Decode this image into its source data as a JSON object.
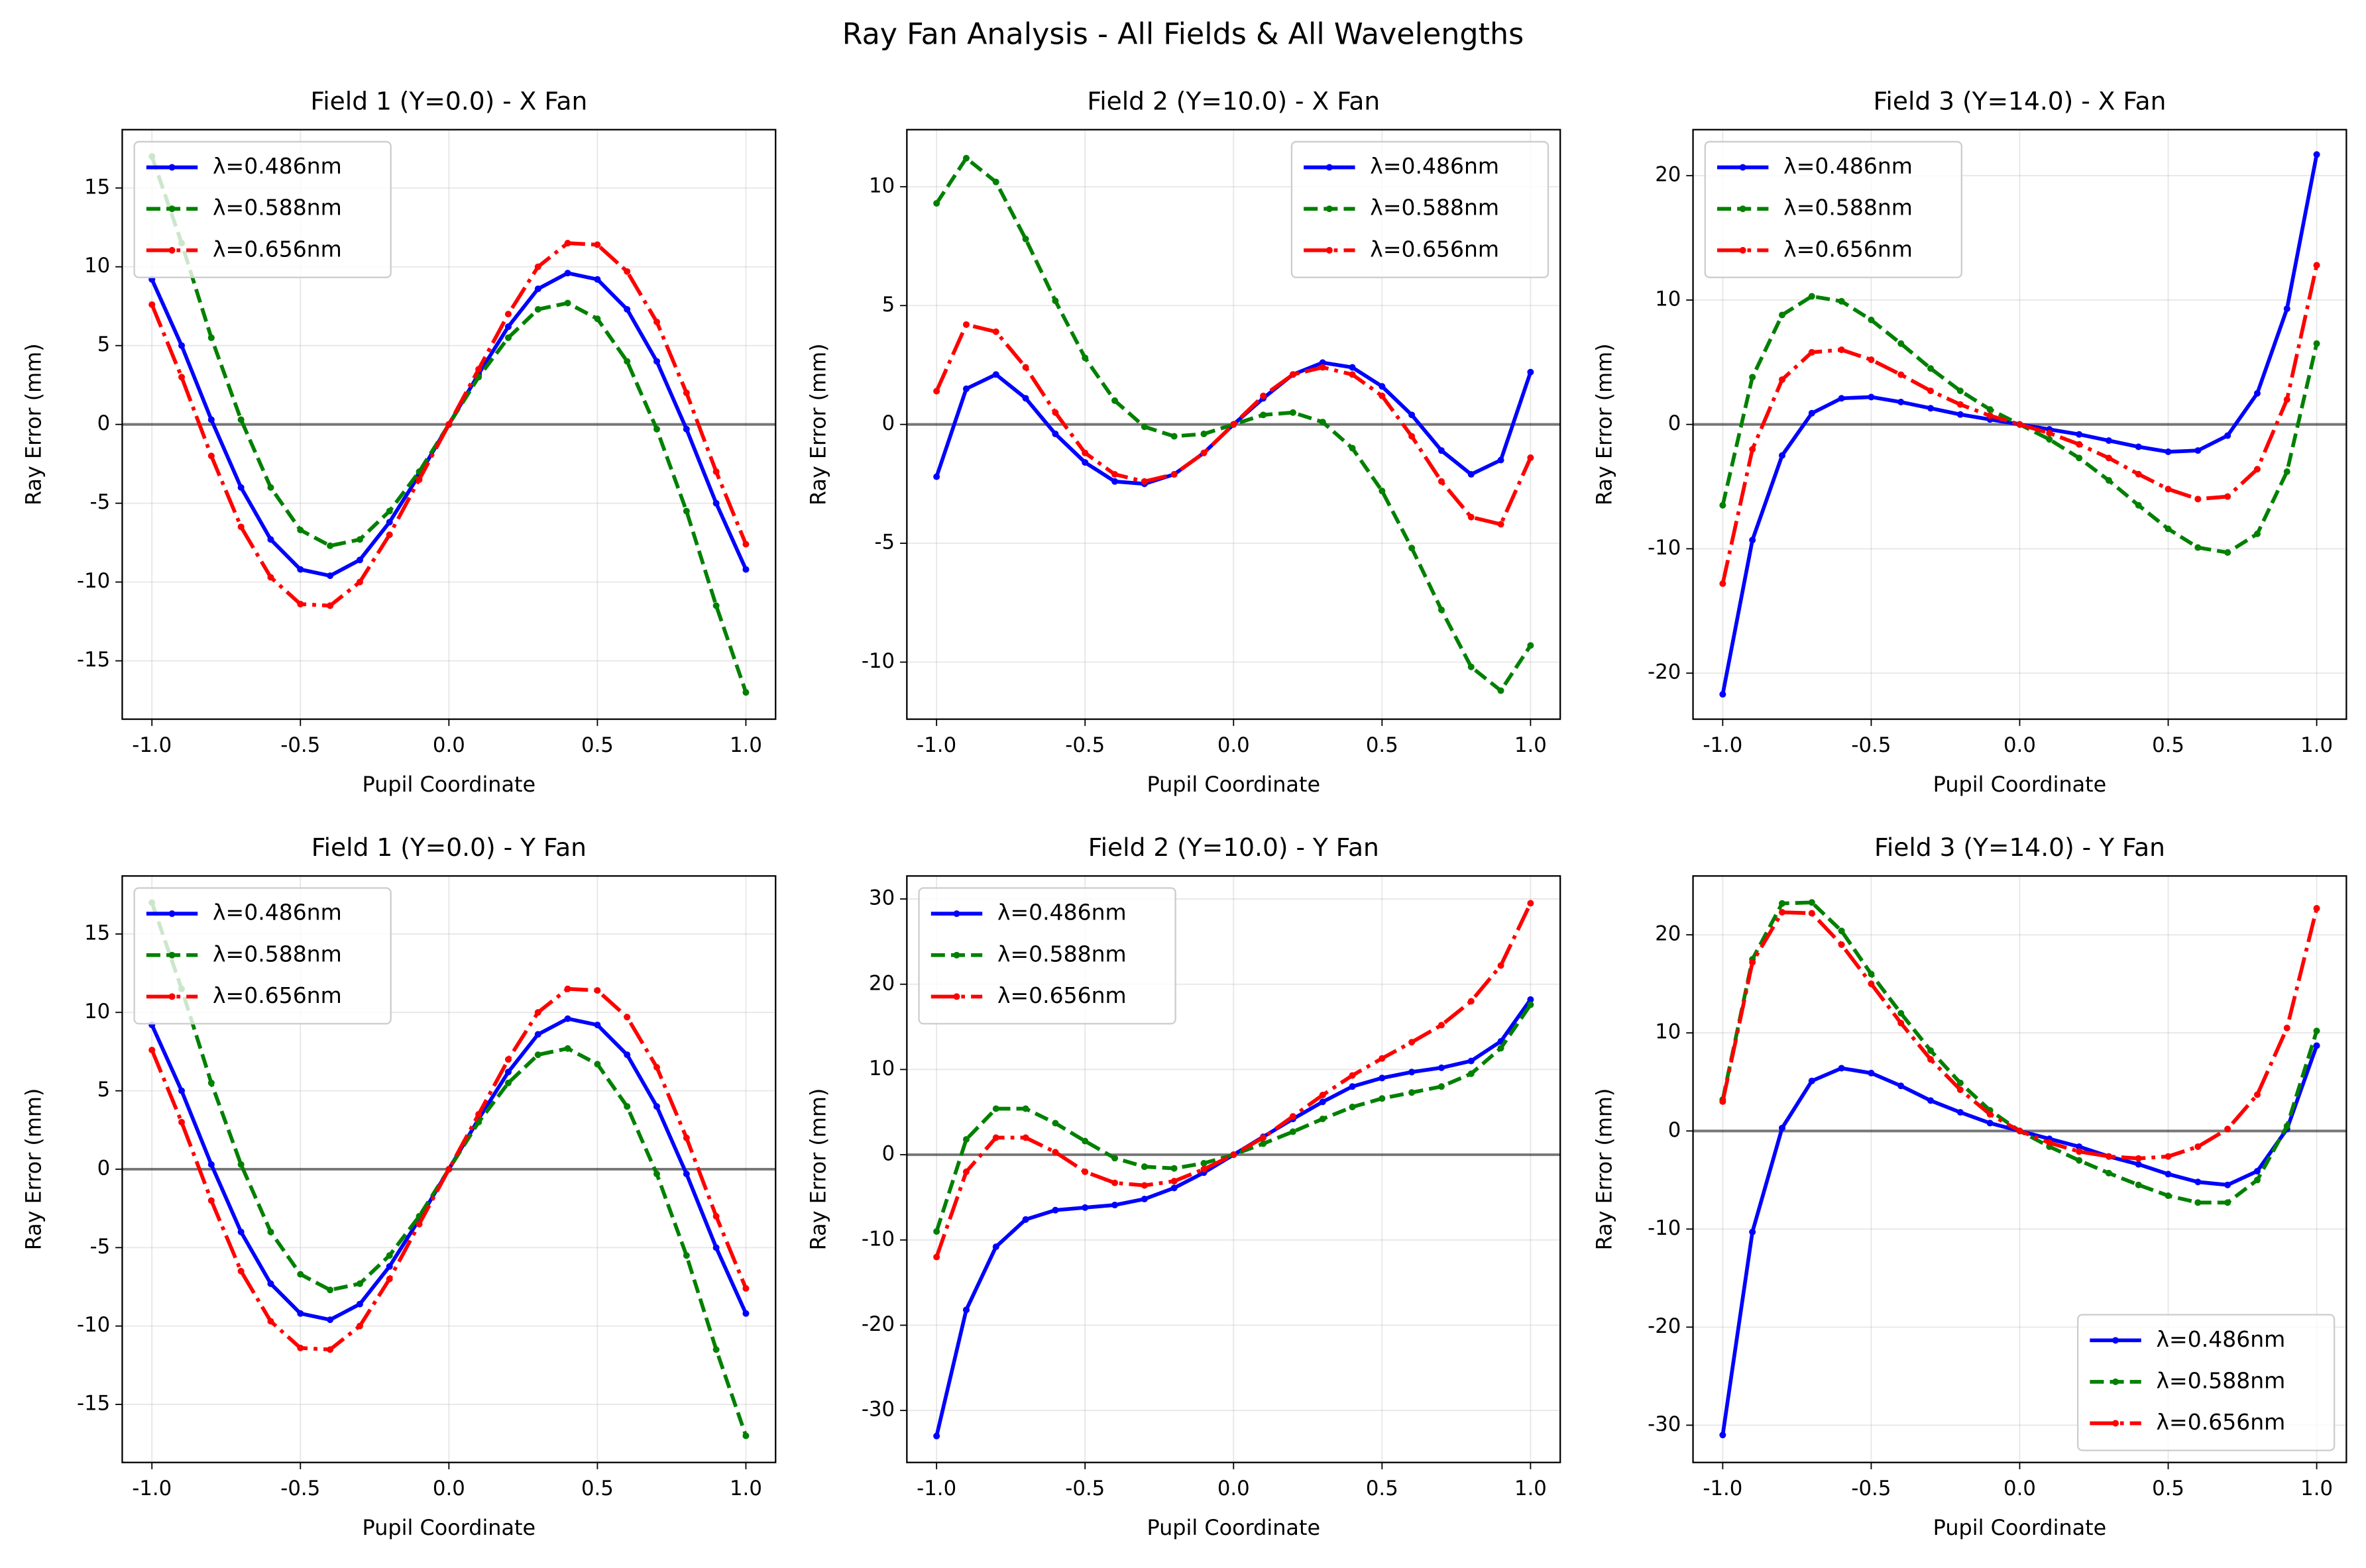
{
  "title": "Ray Fan Analysis - All Fields & All Wavelengths",
  "chart_data": [
    {
      "type": "line",
      "title": "Field 1 (Y=0.0) - X Fan",
      "x_label": "Pupil Coordinate",
      "y_label": "Ray Error (mm)",
      "x": [
        -1,
        -0.9,
        -0.8,
        -0.7,
        -0.6,
        -0.5,
        -0.4,
        -0.3,
        -0.2,
        -0.1,
        0,
        0.1,
        0.2,
        0.3,
        0.4,
        0.5,
        0.6,
        0.7,
        0.8,
        0.9,
        1
      ],
      "xlim": [
        -1.1,
        1.1
      ],
      "ylim": [
        -18.7,
        18.7
      ],
      "xticks": [
        {
          "value": -1,
          "label": "-1.0"
        },
        {
          "value": -0.5,
          "label": "-0.5"
        },
        {
          "value": 0,
          "label": "0.0"
        },
        {
          "value": 0.5,
          "label": "0.5"
        },
        {
          "value": 1,
          "label": "1.0"
        }
      ],
      "yticks": [
        -15,
        -10,
        -5,
        0,
        5,
        10,
        15
      ],
      "grid": true,
      "hline": 0,
      "legend": "upper left",
      "series": [
        {
          "name": "λ=0.486nm",
          "color": "#0000ff",
          "dash": "solid",
          "values": [
            9.2,
            5,
            0.3,
            -4,
            -7.3,
            -9.2,
            -9.6,
            -8.6,
            -6.2,
            -3.2,
            0,
            3.2,
            6.2,
            8.6,
            9.6,
            9.2,
            7.3,
            4,
            -0.3,
            -5,
            -9.2
          ]
        },
        {
          "name": "λ=0.588nm",
          "color": "#008000",
          "dash": "dashed",
          "values": [
            17,
            11.5,
            5.5,
            0.3,
            -4,
            -6.7,
            -7.7,
            -7.3,
            -5.5,
            -3,
            0,
            3,
            5.5,
            7.3,
            7.7,
            6.7,
            4,
            -0.3,
            -5.5,
            -11.5,
            -17
          ]
        },
        {
          "name": "λ=0.656nm",
          "color": "#ff0000",
          "dash": "dashdot",
          "values": [
            7.6,
            3,
            -2,
            -6.5,
            -9.7,
            -11.4,
            -11.5,
            -10,
            -7,
            -3.5,
            0,
            3.5,
            7,
            10,
            11.5,
            11.4,
            9.7,
            6.5,
            2,
            -3,
            -7.6
          ]
        }
      ]
    },
    {
      "type": "line",
      "title": "Field 2 (Y=10.0) - X Fan",
      "x_label": "Pupil Coordinate",
      "y_label": "Ray Error (mm)",
      "x": [
        -1,
        -0.9,
        -0.8,
        -0.7,
        -0.6,
        -0.5,
        -0.4,
        -0.3,
        -0.2,
        -0.1,
        0,
        0.1,
        0.2,
        0.3,
        0.4,
        0.5,
        0.6,
        0.7,
        0.8,
        0.9,
        1
      ],
      "xlim": [
        -1.1,
        1.1
      ],
      "ylim": [
        -12.4,
        12.4
      ],
      "xticks": [
        {
          "value": -1,
          "label": "-1.0"
        },
        {
          "value": -0.5,
          "label": "-0.5"
        },
        {
          "value": 0,
          "label": "0.0"
        },
        {
          "value": 0.5,
          "label": "0.5"
        },
        {
          "value": 1,
          "label": "1.0"
        }
      ],
      "yticks": [
        -10,
        -5,
        0,
        5,
        10
      ],
      "grid": true,
      "hline": 0,
      "legend": "upper right",
      "series": [
        {
          "name": "λ=0.486nm",
          "color": "#0000ff",
          "dash": "solid",
          "values": [
            -2.2,
            1.5,
            2.1,
            1.1,
            -0.4,
            -1.6,
            -2.4,
            -2.5,
            -2.1,
            -1.2,
            0,
            1.1,
            2.1,
            2.6,
            2.4,
            1.6,
            0.4,
            -1.1,
            -2.1,
            -1.5,
            2.2
          ]
        },
        {
          "name": "λ=0.588nm",
          "color": "#008000",
          "dash": "dashed",
          "values": [
            9.3,
            11.2,
            10.2,
            7.8,
            5.2,
            2.8,
            1,
            -0.1,
            -0.5,
            -0.4,
            0,
            0.4,
            0.5,
            0.1,
            -1,
            -2.8,
            -5.2,
            -7.8,
            -10.2,
            -11.2,
            -9.3
          ]
        },
        {
          "name": "λ=0.656nm",
          "color": "#ff0000",
          "dash": "dashdot",
          "values": [
            1.4,
            4.2,
            3.9,
            2.4,
            0.5,
            -1.2,
            -2.1,
            -2.4,
            -2.1,
            -1.2,
            0,
            1.2,
            2.1,
            2.4,
            2.1,
            1.2,
            -0.5,
            -2.4,
            -3.9,
            -4.2,
            -1.4
          ]
        }
      ]
    },
    {
      "type": "line",
      "title": "Field 3 (Y=14.0) - X Fan",
      "x_label": "Pupil Coordinate",
      "y_label": "Ray Error (mm)",
      "x": [
        -1,
        -0.9,
        -0.8,
        -0.7,
        -0.6,
        -0.5,
        -0.4,
        -0.3,
        -0.2,
        -0.1,
        0,
        0.1,
        0.2,
        0.3,
        0.4,
        0.5,
        0.6,
        0.7,
        0.8,
        0.9,
        1
      ],
      "xlim": [
        -1.1,
        1.1
      ],
      "ylim": [
        -23.7,
        23.7
      ],
      "xticks": [
        {
          "value": -1,
          "label": "-1.0"
        },
        {
          "value": -0.5,
          "label": "-0.5"
        },
        {
          "value": 0,
          "label": "0.0"
        },
        {
          "value": 0.5,
          "label": "0.5"
        },
        {
          "value": 1,
          "label": "1.0"
        }
      ],
      "yticks": [
        -20,
        -10,
        0,
        10,
        20
      ],
      "grid": true,
      "hline": 0,
      "legend": "upper left",
      "series": [
        {
          "name": "λ=0.486nm",
          "color": "#0000ff",
          "dash": "solid",
          "values": [
            -21.7,
            -9.3,
            -2.5,
            0.9,
            2.1,
            2.2,
            1.8,
            1.3,
            0.8,
            0.4,
            0,
            -0.4,
            -0.8,
            -1.3,
            -1.8,
            -2.2,
            -2.1,
            -0.9,
            2.5,
            9.3,
            21.7
          ]
        },
        {
          "name": "λ=0.588nm",
          "color": "#008000",
          "dash": "dashed",
          "values": [
            -6.5,
            3.8,
            8.8,
            10.3,
            9.9,
            8.4,
            6.5,
            4.5,
            2.7,
            1.2,
            0,
            -1.2,
            -2.7,
            -4.5,
            -6.5,
            -8.4,
            -9.9,
            -10.3,
            -8.8,
            -3.8,
            6.5
          ]
        },
        {
          "name": "λ=0.656nm",
          "color": "#ff0000",
          "dash": "dashdot",
          "values": [
            -12.8,
            -2,
            3.6,
            5.8,
            6,
            5.2,
            4,
            2.7,
            1.6,
            0.7,
            0,
            -0.7,
            -1.6,
            -2.7,
            -4,
            -5.2,
            -6,
            -5.8,
            -3.6,
            2,
            12.8
          ]
        }
      ]
    },
    {
      "type": "line",
      "title": "Field 1 (Y=0.0) - Y Fan",
      "x_label": "Pupil Coordinate",
      "y_label": "Ray Error (mm)",
      "x": [
        -1,
        -0.9,
        -0.8,
        -0.7,
        -0.6,
        -0.5,
        -0.4,
        -0.3,
        -0.2,
        -0.1,
        0,
        0.1,
        0.2,
        0.3,
        0.4,
        0.5,
        0.6,
        0.7,
        0.8,
        0.9,
        1
      ],
      "xlim": [
        -1.1,
        1.1
      ],
      "ylim": [
        -18.7,
        18.7
      ],
      "xticks": [
        {
          "value": -1,
          "label": "-1.0"
        },
        {
          "value": -0.5,
          "label": "-0.5"
        },
        {
          "value": 0,
          "label": "0.0"
        },
        {
          "value": 0.5,
          "label": "0.5"
        },
        {
          "value": 1,
          "label": "1.0"
        }
      ],
      "yticks": [
        -15,
        -10,
        -5,
        0,
        5,
        10,
        15
      ],
      "grid": true,
      "hline": 0,
      "legend": "upper left",
      "series": [
        {
          "name": "λ=0.486nm",
          "color": "#0000ff",
          "dash": "solid",
          "values": [
            9.2,
            5,
            0.3,
            -4,
            -7.3,
            -9.2,
            -9.6,
            -8.6,
            -6.2,
            -3.2,
            0,
            3.2,
            6.2,
            8.6,
            9.6,
            9.2,
            7.3,
            4,
            -0.3,
            -5,
            -9.2
          ]
        },
        {
          "name": "λ=0.588nm",
          "color": "#008000",
          "dash": "dashed",
          "values": [
            17,
            11.5,
            5.5,
            0.3,
            -4,
            -6.7,
            -7.7,
            -7.3,
            -5.5,
            -3,
            0,
            3,
            5.5,
            7.3,
            7.7,
            6.7,
            4,
            -0.3,
            -5.5,
            -11.5,
            -17
          ]
        },
        {
          "name": "λ=0.656nm",
          "color": "#ff0000",
          "dash": "dashdot",
          "values": [
            7.6,
            3,
            -2,
            -6.5,
            -9.7,
            -11.4,
            -11.5,
            -10,
            -7,
            -3.5,
            0,
            3.5,
            7,
            10,
            11.5,
            11.4,
            9.7,
            6.5,
            2,
            -3,
            -7.6
          ]
        }
      ]
    },
    {
      "type": "line",
      "title": "Field 2 (Y=10.0) - Y Fan",
      "x_label": "Pupil Coordinate",
      "y_label": "Ray Error (mm)",
      "x": [
        -1,
        -0.9,
        -0.8,
        -0.7,
        -0.6,
        -0.5,
        -0.4,
        -0.3,
        -0.2,
        -0.1,
        0,
        0.1,
        0.2,
        0.3,
        0.4,
        0.5,
        0.6,
        0.7,
        0.8,
        0.9,
        1
      ],
      "xlim": [
        -1.1,
        1.1
      ],
      "ylim": [
        -36.1,
        32.7
      ],
      "xticks": [
        {
          "value": -1,
          "label": "-1.0"
        },
        {
          "value": -0.5,
          "label": "-0.5"
        },
        {
          "value": 0,
          "label": "0.0"
        },
        {
          "value": 0.5,
          "label": "0.5"
        },
        {
          "value": 1,
          "label": "1.0"
        }
      ],
      "yticks": [
        -30,
        -20,
        -10,
        0,
        10,
        20,
        30
      ],
      "grid": true,
      "hline": 0,
      "legend": "upper left",
      "series": [
        {
          "name": "λ=0.486nm",
          "color": "#0000ff",
          "dash": "solid",
          "values": [
            -33,
            -18.2,
            -10.8,
            -7.6,
            -6.5,
            -6.2,
            -5.9,
            -5.2,
            -3.9,
            -2.1,
            0,
            2.1,
            4.2,
            6.2,
            8,
            9,
            9.7,
            10.2,
            11,
            13.3,
            18.2
          ]
        },
        {
          "name": "λ=0.588nm",
          "color": "#008000",
          "dash": "dashed",
          "values": [
            -9,
            1.8,
            5.4,
            5.4,
            3.7,
            1.6,
            -0.4,
            -1.4,
            -1.6,
            -1,
            0,
            1.3,
            2.7,
            4.2,
            5.6,
            6.6,
            7.3,
            8,
            9.5,
            12.5,
            17.6
          ]
        },
        {
          "name": "λ=0.656nm",
          "color": "#ff0000",
          "dash": "dashdot",
          "values": [
            -12,
            -2,
            2,
            2,
            0.3,
            -2,
            -3.3,
            -3.6,
            -3.1,
            -1.7,
            0,
            2,
            4.5,
            7,
            9.3,
            11.3,
            13.2,
            15.2,
            18,
            22.2,
            29.5
          ]
        }
      ]
    },
    {
      "type": "line",
      "title": "Field 3 (Y=14.0) - Y Fan",
      "x_label": "Pupil Coordinate",
      "y_label": "Ray Error (mm)",
      "x": [
        -1,
        -0.9,
        -0.8,
        -0.7,
        -0.6,
        -0.5,
        -0.4,
        -0.3,
        -0.2,
        -0.1,
        0,
        0.1,
        0.2,
        0.3,
        0.4,
        0.5,
        0.6,
        0.7,
        0.8,
        0.9,
        1
      ],
      "xlim": [
        -1.1,
        1.1
      ],
      "ylim": [
        -33.8,
        26
      ],
      "xticks": [
        {
          "value": -1,
          "label": "-1.0"
        },
        {
          "value": -0.5,
          "label": "-0.5"
        },
        {
          "value": 0,
          "label": "0.0"
        },
        {
          "value": 0.5,
          "label": "0.5"
        },
        {
          "value": 1,
          "label": "1.0"
        }
      ],
      "yticks": [
        -30,
        -20,
        -10,
        0,
        10,
        20
      ],
      "grid": true,
      "hline": 0,
      "legend": "lower right",
      "series": [
        {
          "name": "λ=0.486nm",
          "color": "#0000ff",
          "dash": "solid",
          "values": [
            -31,
            -10.3,
            0.3,
            5.1,
            6.4,
            5.9,
            4.6,
            3.1,
            1.9,
            0.8,
            0,
            -0.8,
            -1.6,
            -2.6,
            -3.4,
            -4.4,
            -5.2,
            -5.5,
            -4.1,
            0.2,
            8.7
          ]
        },
        {
          "name": "λ=0.588nm",
          "color": "#008000",
          "dash": "dashed",
          "values": [
            3.2,
            17.5,
            23.2,
            23.3,
            20.4,
            16,
            12,
            8.2,
            4.9,
            2.1,
            0,
            -1.6,
            -3,
            -4.3,
            -5.5,
            -6.6,
            -7.3,
            -7.3,
            -5,
            0.5,
            10.2
          ]
        },
        {
          "name": "λ=0.656nm",
          "color": "#ff0000",
          "dash": "dashdot",
          "values": [
            3,
            17.2,
            22.3,
            22.2,
            19,
            15,
            11,
            7.3,
            4.2,
            1.7,
            0,
            -1.2,
            -2.1,
            -2.6,
            -2.8,
            -2.6,
            -1.6,
            0.2,
            3.7,
            10.5,
            22.7
          ]
        }
      ]
    }
  ]
}
